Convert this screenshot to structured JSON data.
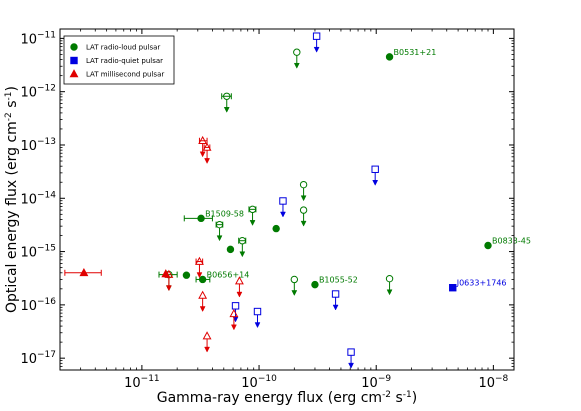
{
  "chart_data": {
    "type": "scatter",
    "xlabel": "Gamma-ray energy flux (erg cm$^{-2}$ s$^{-1}$)",
    "ylabel": "Optical energy flux (erg cm$^{-2}$ s$^{-1}$)",
    "x_scale": "log",
    "y_scale": "log",
    "xlim": [
      2e-12,
      1.5e-08
    ],
    "ylim": [
      6e-18,
      1.5e-11
    ],
    "x_tick_values": [
      1e-11,
      1e-10,
      1e-09,
      1e-08
    ],
    "x_tick_labels": [
      {
        "base": "10",
        "exp": "−11"
      },
      {
        "base": "10",
        "exp": "−10"
      },
      {
        "base": "10",
        "exp": "−9"
      },
      {
        "base": "10",
        "exp": "−8"
      }
    ],
    "y_tick_values": [
      1e-17,
      1e-16,
      1e-15,
      1e-14,
      1e-13,
      1e-12,
      1e-11
    ],
    "y_tick_labels": [
      {
        "base": "10",
        "exp": "−17"
      },
      {
        "base": "10",
        "exp": "−16"
      },
      {
        "base": "10",
        "exp": "−15"
      },
      {
        "base": "10",
        "exp": "−14"
      },
      {
        "base": "10",
        "exp": "−13"
      },
      {
        "base": "10",
        "exp": "−12"
      },
      {
        "base": "10",
        "exp": "−11"
      }
    ],
    "legend_position": "top-left",
    "legend": [
      {
        "label": "LAT radio-loud pulsar",
        "marker": "circle",
        "color": "#007a00"
      },
      {
        "label": "LAT radio-quiet pulsar",
        "marker": "square",
        "color": "#0000e0"
      },
      {
        "label": "LAT millisecond pulsar",
        "marker": "triangle",
        "color": "#e00000"
      }
    ],
    "series": [
      {
        "name": "LAT radio-loud pulsar",
        "marker": "circle",
        "color": "#007a00",
        "points": [
          {
            "x": 1.3e-09,
            "y": 4.5e-12,
            "label": "B0531+21"
          },
          {
            "x": 9e-09,
            "y": 1.3e-15,
            "label": "B0833-45"
          },
          {
            "x": 3.2e-11,
            "y": 4.2e-15,
            "label": "B1509-58",
            "xerr": [
              2.3e-11,
              4e-11
            ]
          },
          {
            "x": 3e-10,
            "y": 2.4e-16,
            "label": "B1055-52"
          },
          {
            "x": 3.3e-11,
            "y": 3e-16,
            "label": "B0656+14",
            "xerr": [
              2.9e-11,
              3.8e-11
            ]
          },
          {
            "x": 1.4e-10,
            "y": 2.7e-15
          },
          {
            "x": 2.4e-11,
            "y": 3.6e-16
          },
          {
            "x": 5.7e-11,
            "y": 1.1e-15
          }
        ]
      },
      {
        "name": "LAT radio-loud pulsar upper limits",
        "marker": "circle-open",
        "color": "#007a00",
        "upper_limit": true,
        "points": [
          {
            "x": 2.1e-10,
            "y": 5.5e-12
          },
          {
            "x": 5.3e-11,
            "y": 8.2e-13,
            "xerr": [
              4.8e-11,
              5.8e-11
            ]
          },
          {
            "x": 2.4e-10,
            "y": 1.8e-14
          },
          {
            "x": 2.4e-10,
            "y": 6e-15
          },
          {
            "x": 8.8e-11,
            "y": 6.2e-15,
            "xerr": [
              8.2e-11,
              9.4e-11
            ]
          },
          {
            "x": 4.6e-11,
            "y": 3.2e-15,
            "xerr": [
              4.3e-11,
              4.9e-11
            ]
          },
          {
            "x": 7.2e-11,
            "y": 1.6e-15,
            "xerr": [
              6.7e-11,
              7.7e-11
            ]
          },
          {
            "x": 2e-10,
            "y": 3e-16
          },
          {
            "x": 1.3e-09,
            "y": 3.1e-16
          },
          {
            "x": 1.7e-11,
            "y": 3.7e-16,
            "xerr": [
              1.4e-11,
              2e-11
            ]
          }
        ]
      },
      {
        "name": "LAT radio-quiet pulsar",
        "marker": "square",
        "color": "#0000e0",
        "points": [
          {
            "x": 4.5e-09,
            "y": 2.1e-16,
            "label": "J0633+1746"
          }
        ]
      },
      {
        "name": "LAT radio-quiet pulsar upper limits",
        "marker": "square-open",
        "color": "#0000e0",
        "upper_limit": true,
        "points": [
          {
            "x": 3.1e-10,
            "y": 1.1e-11
          },
          {
            "x": 9.8e-10,
            "y": 3.5e-14
          },
          {
            "x": 1.6e-10,
            "y": 8.9e-15
          },
          {
            "x": 4.5e-10,
            "y": 1.6e-16
          },
          {
            "x": 6.3e-11,
            "y": 9.6e-17
          },
          {
            "x": 9.7e-11,
            "y": 7.5e-17
          },
          {
            "x": 6.1e-10,
            "y": 1.3e-17
          }
        ]
      },
      {
        "name": "LAT millisecond pulsar",
        "marker": "triangle",
        "color": "#e00000",
        "points": [
          {
            "x": 3.2e-12,
            "y": 4e-16,
            "xerr": [
              2.2e-12,
              4.5e-12
            ]
          },
          {
            "x": 1.6e-11,
            "y": 3.8e-16
          }
        ]
      },
      {
        "name": "LAT millisecond pulsar upper limits",
        "marker": "triangle-open",
        "color": "#e00000",
        "upper_limit": true,
        "points": [
          {
            "x": 3.3e-11,
            "y": 1.2e-13,
            "xerr": [
              3.1e-11,
              3.6e-11
            ]
          },
          {
            "x": 3.6e-11,
            "y": 9e-14,
            "xerr": [
              3.4e-11,
              3.8e-11
            ]
          },
          {
            "x": 3.1e-11,
            "y": 6.5e-16,
            "xerr": [
              2.9e-11,
              3.3e-11
            ]
          },
          {
            "x": 1.7e-11,
            "y": 3.7e-16
          },
          {
            "x": 6.8e-11,
            "y": 2.8e-16
          },
          {
            "x": 3.3e-11,
            "y": 1.5e-16
          },
          {
            "x": 6.1e-11,
            "y": 6.8e-17
          },
          {
            "x": 3.6e-11,
            "y": 2.6e-17
          }
        ]
      }
    ]
  }
}
